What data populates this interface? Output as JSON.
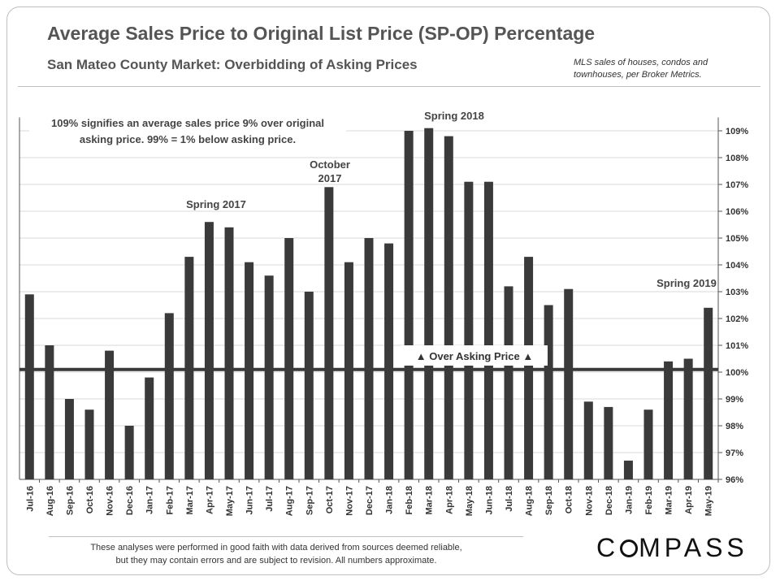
{
  "title": "Average Sales Price to Original List Price (SP-OP) Percentage",
  "subtitle": "San Mateo County Market:  Overbidding  of Asking Prices",
  "source_note_lines": [
    "MLS sales of houses, condos and",
    "townhouses, per Broker Metrics."
  ],
  "note_lines": [
    "109% signifies an average sales price 9% over original",
    "asking price. 99% = 1% below asking price."
  ],
  "disclaimer_lines": [
    "These analyses  were performed in good faith with data derived from sources deemed reliable,",
    "but they may contain  errors and are subject to revision.  All numbers approximate."
  ],
  "logo": {
    "before": "C",
    "after": "MPASS"
  },
  "colors": {
    "bar": "#3a3a3a",
    "reference_line": "#3a3a3a",
    "grid": "#d9d9d9",
    "text": "#555555"
  },
  "chart_data": {
    "type": "bar",
    "categories": [
      "Jul-16",
      "Aug-16",
      "Sep-16",
      "Oct-16",
      "Nov-16",
      "Dec-16",
      "Jan-17",
      "Feb-17",
      "Mar-17",
      "Apr-17",
      "May-17",
      "Jun-17",
      "Jul-17",
      "Aug-17",
      "Sep-17",
      "Oct-17",
      "Nov-17",
      "Dec-17",
      "Jan-18",
      "Feb-18",
      "Mar-18",
      "Apr-18",
      "May-18",
      "Jun-18",
      "Jul-18",
      "Aug-18",
      "Sep-18",
      "Oct-18",
      "Nov-18",
      "Dec-18",
      "Jan-19",
      "Feb-19",
      "Mar-19",
      "Apr-19",
      "May-19"
    ],
    "values": [
      102.9,
      101.0,
      99.0,
      98.6,
      100.8,
      98.0,
      99.8,
      102.2,
      104.3,
      105.6,
      105.4,
      104.1,
      103.6,
      105.0,
      103.0,
      106.9,
      104.1,
      105.0,
      104.8,
      109.0,
      109.1,
      108.8,
      107.1,
      107.1,
      103.2,
      104.3,
      102.5,
      103.1,
      98.9,
      98.7,
      96.7,
      98.6,
      100.4,
      100.5,
      102.4
    ],
    "ylim": [
      96,
      109.5
    ],
    "yticks": [
      96,
      97,
      98,
      99,
      100,
      101,
      102,
      103,
      104,
      105,
      106,
      107,
      108,
      109
    ],
    "ytick_labels": [
      "96%",
      "97%",
      "98%",
      "99%",
      "100%",
      "101%",
      "102%",
      "103%",
      "104%",
      "105%",
      "106%",
      "107%",
      "108%",
      "109%"
    ],
    "y_axis_side": "right",
    "grid": true,
    "reference_line": {
      "value": 100.1,
      "label": "▲ Over Asking Price ▲"
    },
    "annotations": [
      {
        "text_lines": [
          "Spring 2017"
        ],
        "category": "Apr-17"
      },
      {
        "text_lines": [
          "October",
          "2017"
        ],
        "category": "Oct-17"
      },
      {
        "text_lines": [
          "Spring 2018"
        ],
        "category": "Mar-18"
      },
      {
        "text_lines": [
          "Spring 2019"
        ],
        "category": "Apr-19"
      }
    ]
  }
}
